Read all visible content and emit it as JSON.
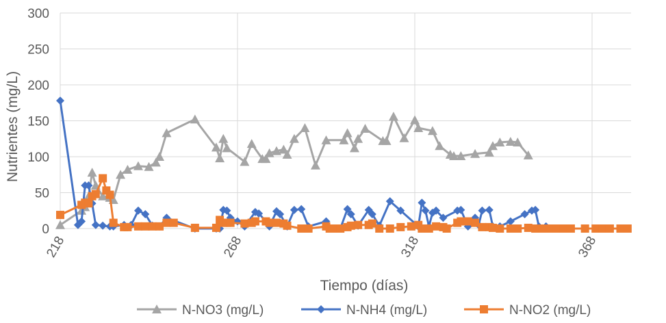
{
  "chart_data": {
    "type": "line",
    "title": "",
    "xlabel": "Tiempo (días)",
    "ylabel": "Nutrientes (mg/L)",
    "xlim": [
      218,
      379
    ],
    "ylim": [
      0,
      300
    ],
    "x_ticks": [
      218,
      268,
      318,
      368
    ],
    "y_ticks": [
      0,
      50,
      100,
      150,
      200,
      250,
      300
    ],
    "x_tick_labels": [
      "218",
      "268",
      "318",
      "368"
    ],
    "y_tick_labels": [
      "0",
      "50",
      "100",
      "150",
      "200",
      "250",
      "300"
    ],
    "grid": true,
    "legend_position": "bottom",
    "series": [
      {
        "name": "N-NO3 (mg/L)",
        "color": "#a5a5a5",
        "marker": "triangle",
        "x": [
          218,
          224,
          225,
          226,
          227,
          228,
          230,
          232,
          233,
          235,
          237,
          240,
          243,
          245,
          246,
          248,
          256,
          262,
          263,
          264,
          265,
          270,
          272,
          275,
          276,
          277,
          279,
          281,
          282,
          284,
          287,
          290,
          293,
          298,
          299,
          301,
          302,
          304,
          309,
          310,
          312,
          315,
          318,
          319,
          323,
          325,
          328,
          329,
          331,
          335,
          339,
          340,
          342,
          345,
          347,
          350
        ],
        "y": [
          5,
          25,
          30,
          45,
          78,
          60,
          45,
          43,
          40,
          75,
          82,
          87,
          86,
          92,
          100,
          133,
          152,
          113,
          98,
          125,
          112,
          93,
          118,
          97,
          97,
          105,
          108,
          110,
          103,
          125,
          140,
          88,
          123,
          123,
          133,
          112,
          125,
          139,
          122,
          122,
          156,
          126,
          151,
          140,
          136,
          115,
          103,
          101,
          101,
          104,
          106,
          115,
          120,
          121,
          120,
          102
        ]
      },
      {
        "name": "N-NH4 (mg/L)",
        "color": "#4472c4",
        "marker": "diamond",
        "x": [
          218,
          223,
          224,
          225,
          226,
          227,
          228,
          230,
          232,
          233,
          236,
          238,
          240,
          242,
          244,
          246,
          248,
          256,
          262,
          263,
          264,
          265,
          266,
          268,
          270,
          273,
          274,
          276,
          277,
          279,
          280,
          282,
          284,
          286,
          288,
          293,
          294,
          295,
          296,
          297,
          299,
          300,
          302,
          305,
          306,
          308,
          311,
          314,
          319,
          320,
          321,
          322,
          323,
          324,
          326,
          330,
          331,
          333,
          335,
          336,
          337,
          339,
          340,
          342,
          345,
          349,
          351,
          352,
          353,
          355,
          359,
          360
        ],
        "y": [
          178,
          5,
          10,
          60,
          60,
          35,
          5,
          4,
          3,
          3,
          5,
          5,
          25,
          20,
          4,
          3,
          15,
          0,
          0,
          0,
          26,
          25,
          15,
          10,
          3,
          23,
          21,
          10,
          3,
          24,
          20,
          3,
          26,
          27,
          3,
          10,
          0,
          0,
          0,
          0,
          27,
          20,
          4,
          26,
          20,
          4,
          38,
          25,
          3,
          36,
          25,
          3,
          22,
          25,
          15,
          25,
          26,
          3,
          15,
          5,
          25,
          26,
          3,
          3,
          10,
          20,
          25,
          26,
          3,
          3,
          0,
          0
        ]
      },
      {
        "name": "N-NO2 (mg/L)",
        "color": "#ed7d31",
        "marker": "square",
        "x": [
          218,
          224,
          225,
          226,
          227,
          228,
          230,
          231,
          232,
          233,
          236,
          237,
          240,
          242,
          244,
          246,
          248,
          250,
          256,
          262,
          263,
          264,
          265,
          266,
          270,
          272,
          273,
          276,
          277,
          279,
          281,
          282,
          286,
          288,
          293,
          294,
          296,
          297,
          299,
          300,
          302,
          305,
          306,
          308,
          311,
          314,
          317,
          319,
          320,
          321,
          322,
          324,
          326,
          327,
          330,
          331,
          333,
          335,
          337,
          339,
          340,
          342,
          345,
          347,
          350,
          352,
          354,
          356,
          358,
          360,
          362,
          366,
          369,
          371,
          373,
          376,
          378
        ],
        "y": [
          19,
          33,
          36,
          35,
          45,
          48,
          70,
          53,
          47,
          8,
          2,
          2,
          3,
          3,
          3,
          3,
          8,
          8,
          1,
          1,
          12,
          8,
          8,
          8,
          7,
          8,
          10,
          10,
          8,
          8,
          7,
          4,
          0,
          0,
          3,
          0,
          0,
          0,
          2,
          4,
          5,
          5,
          7,
          0,
          0,
          2,
          3,
          5,
          0,
          0,
          0,
          3,
          2,
          0,
          8,
          10,
          10,
          8,
          2,
          2,
          1,
          0,
          0,
          0,
          1,
          0,
          0,
          0,
          0,
          0,
          0,
          0,
          0,
          0,
          0,
          0,
          0
        ]
      }
    ]
  }
}
